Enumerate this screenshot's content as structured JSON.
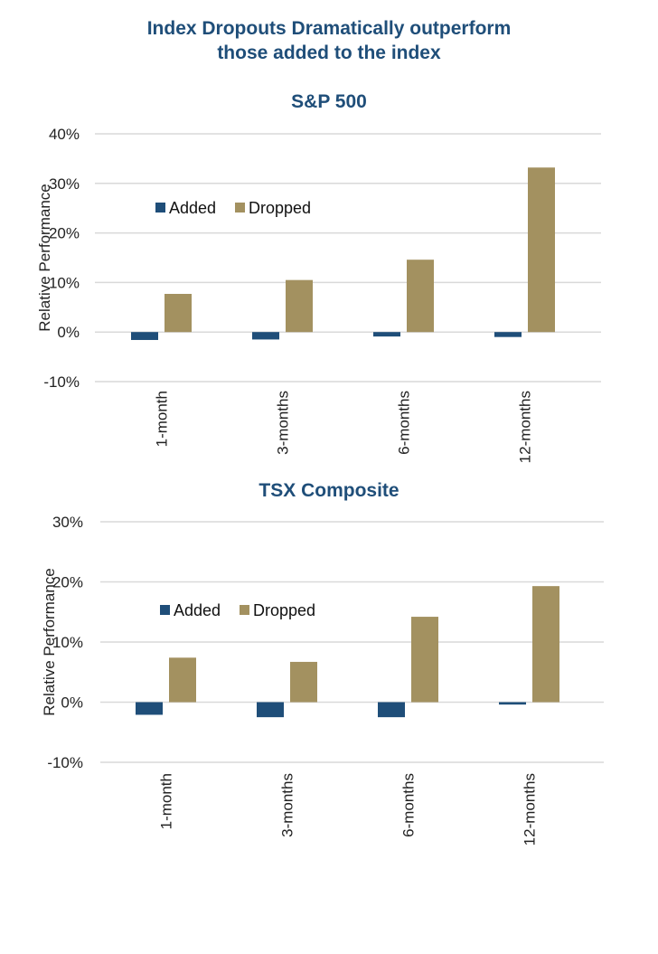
{
  "title_line1": "Index Dropouts Dramatically outperform",
  "title_line2": "those added to the index",
  "colors": {
    "added": "#1f4e79",
    "dropped": "#a39160",
    "title": "#1f4e79"
  },
  "chart_data": [
    {
      "type": "bar",
      "title": "S&P 500",
      "xlabel": "",
      "ylabel": "Relative Performance",
      "categories": [
        "1-month",
        "3-months",
        "6-months",
        "12-months"
      ],
      "series": [
        {
          "name": "Added",
          "values": [
            -1.6,
            -1.5,
            -0.9,
            -1.0
          ]
        },
        {
          "name": "Dropped",
          "values": [
            7.7,
            10.5,
            14.6,
            33.2
          ]
        }
      ],
      "ylim": [
        -10,
        40
      ],
      "yticks": [
        -10,
        0,
        10,
        20,
        30,
        40
      ],
      "ytick_labels": [
        "-10%",
        "0%",
        "10%",
        "20%",
        "30%",
        "40%"
      ],
      "unit": "%",
      "grid": true,
      "legend_position": "top-left"
    },
    {
      "type": "bar",
      "title": "TSX Composite",
      "xlabel": "",
      "ylabel": "Relative Performance",
      "categories": [
        "1-month",
        "3-months",
        "6-months",
        "12-months"
      ],
      "series": [
        {
          "name": "Added",
          "values": [
            -2.1,
            -2.5,
            -2.5,
            -0.4
          ]
        },
        {
          "name": "Dropped",
          "values": [
            7.4,
            6.7,
            14.2,
            19.3
          ]
        }
      ],
      "ylim": [
        -10,
        30
      ],
      "yticks": [
        -10,
        0,
        10,
        20,
        30
      ],
      "ytick_labels": [
        "-10%",
        "0%",
        "10%",
        "20%",
        "30%"
      ],
      "unit": "%",
      "grid": true,
      "legend_position": "top-left"
    }
  ]
}
